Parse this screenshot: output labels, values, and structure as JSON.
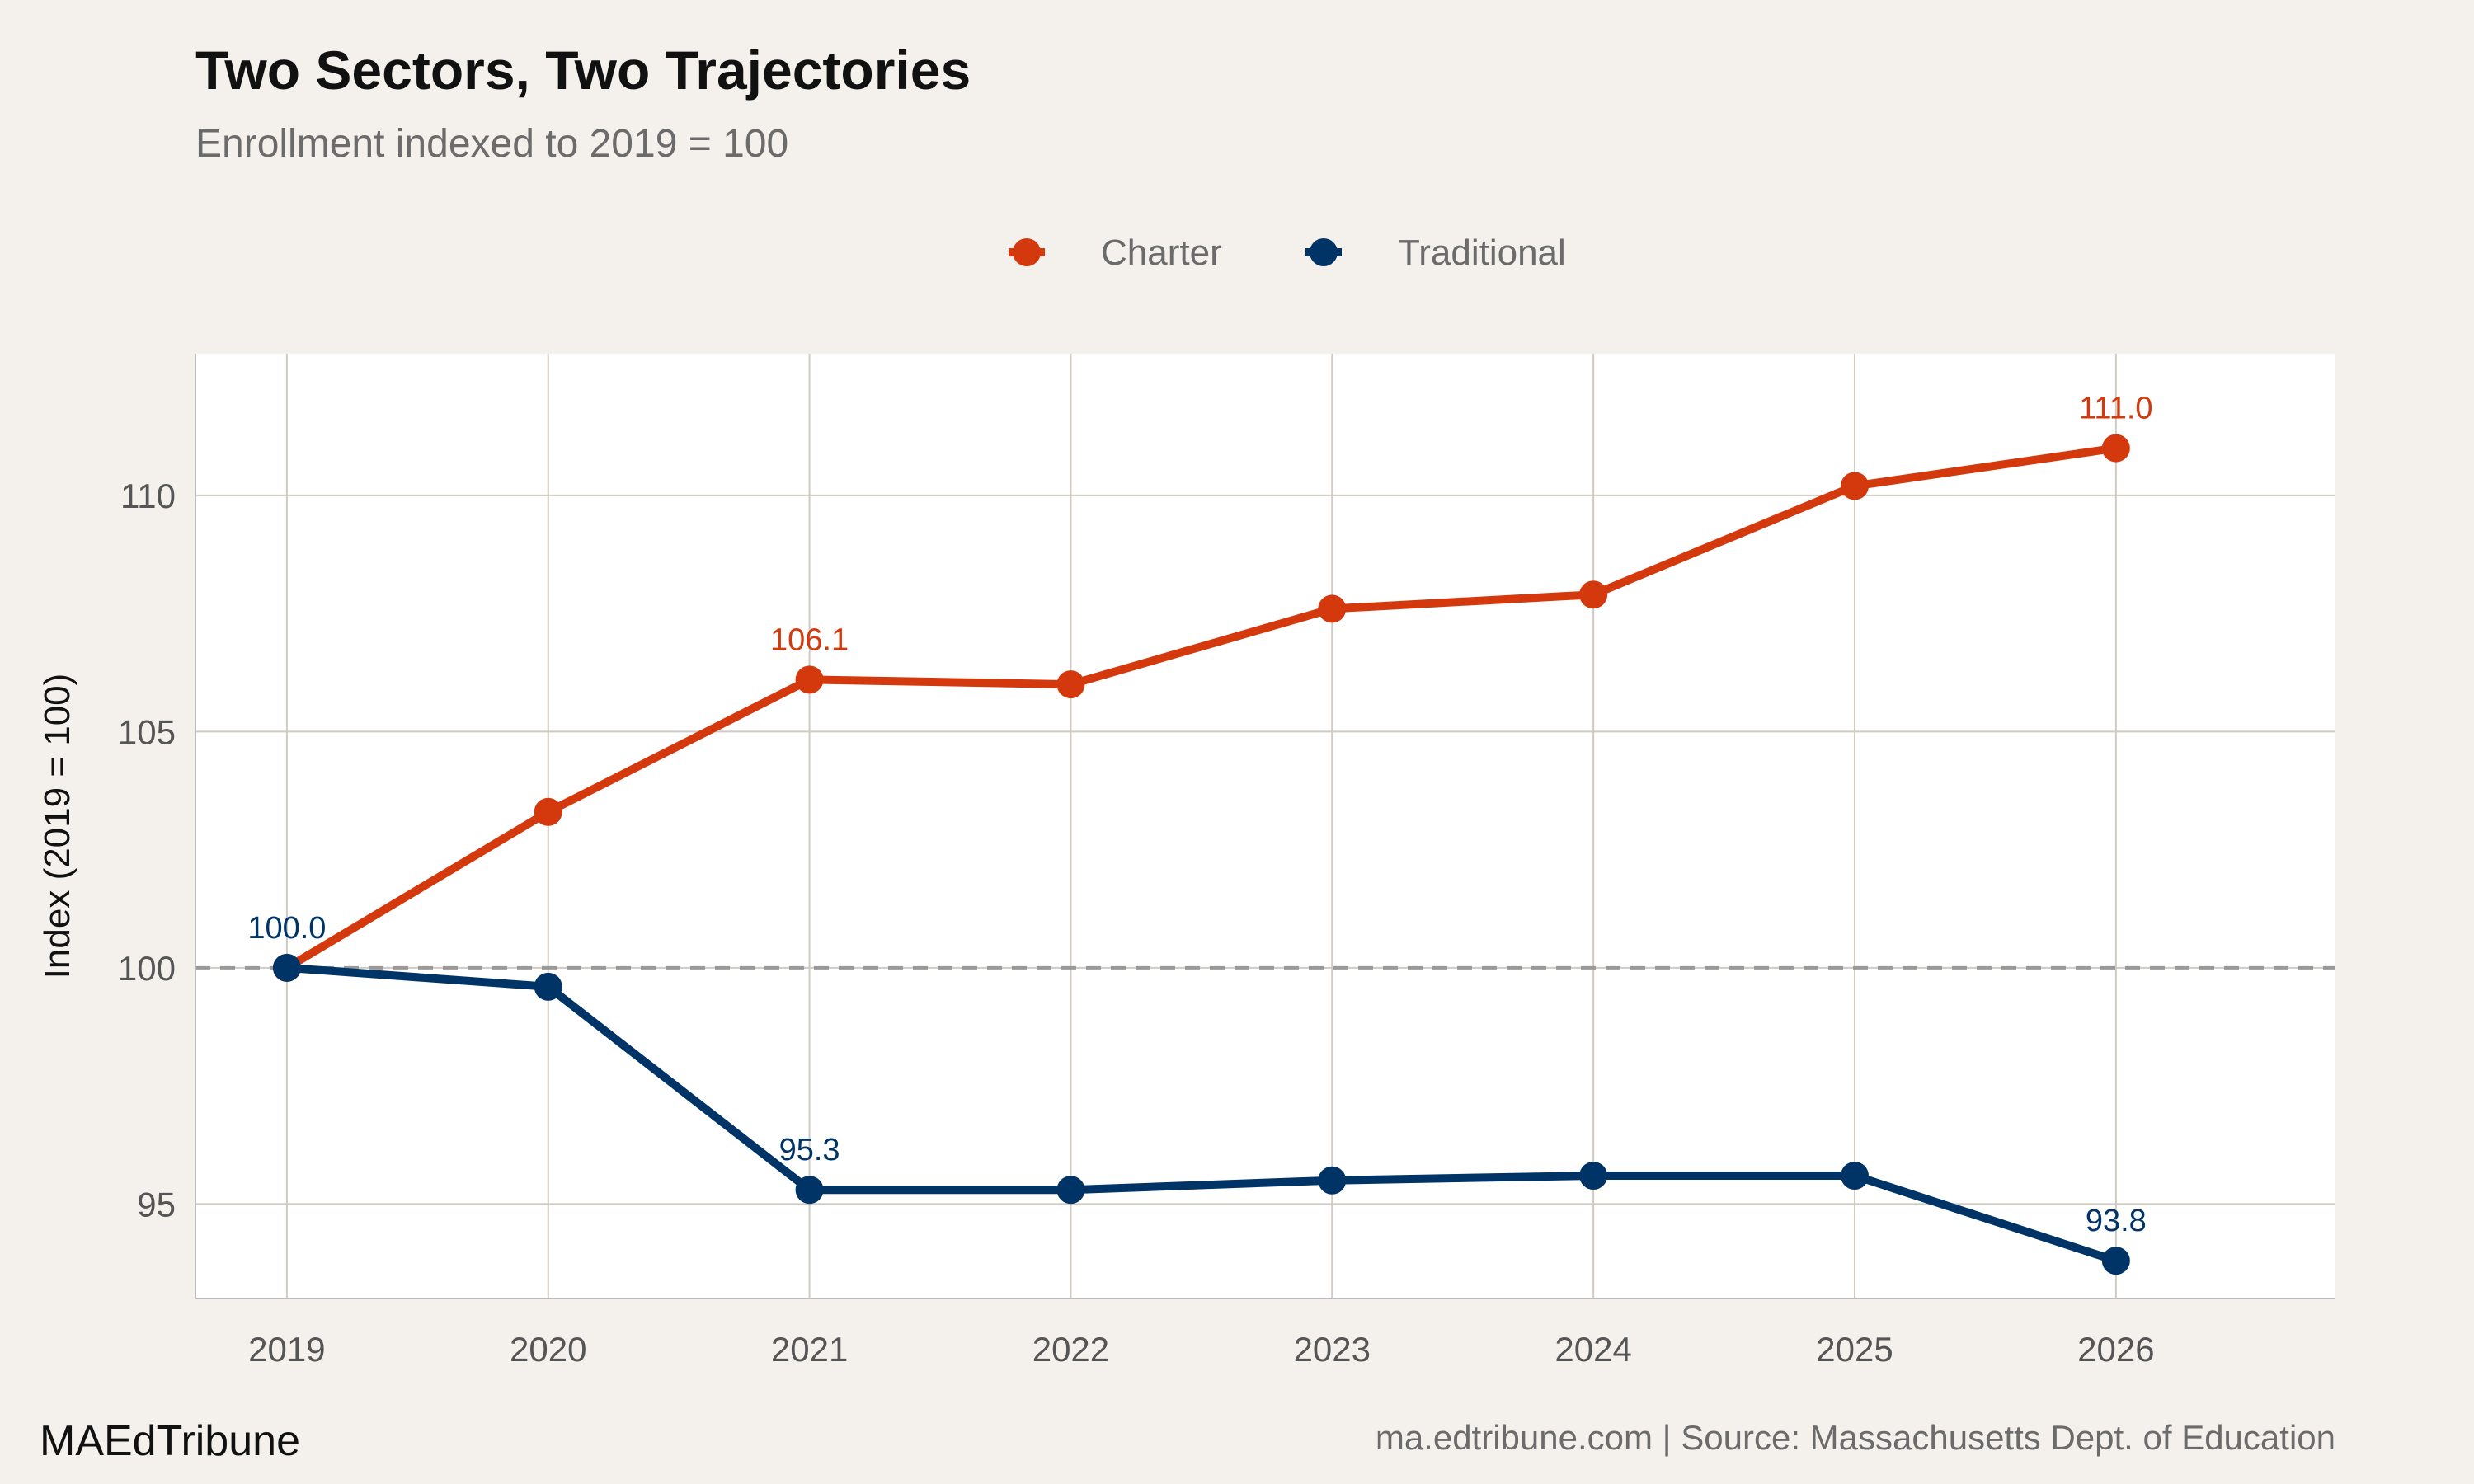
{
  "chart_data": {
    "type": "line",
    "title": "Two Sectors, Two Trajectories",
    "subtitle": "Enrollment indexed to 2019 = 100",
    "xlabel": "",
    "ylabel": "Index (2019 = 100)",
    "x": [
      2019,
      2020,
      2021,
      2022,
      2023,
      2024,
      2025,
      2026
    ],
    "xlim": [
      2018.65,
      2026.84
    ],
    "ylim": [
      93,
      113
    ],
    "yticks": [
      95,
      100,
      105,
      110
    ],
    "grid": true,
    "legend_position": "top",
    "reference_line": {
      "y": 100,
      "style": "dashed",
      "color": "#999999"
    },
    "series": [
      {
        "name": "Charter",
        "color": "#d4380d",
        "values": [
          100.0,
          103.3,
          106.1,
          106.0,
          107.6,
          107.9,
          110.2,
          111.0
        ],
        "labels": {
          "2021": "106.1",
          "2026": "111.0"
        }
      },
      {
        "name": "Traditional",
        "color": "#003366",
        "values": [
          100.0,
          99.6,
          95.3,
          95.3,
          95.5,
          95.6,
          95.6,
          93.8
        ],
        "labels": {
          "2019": "100.0",
          "2021": "95.3",
          "2026": "93.8"
        }
      }
    ]
  },
  "footer": {
    "brand": "MAEdTribune",
    "source": "ma.edtribune.com | Source: Massachusetts Dept. of Education"
  }
}
